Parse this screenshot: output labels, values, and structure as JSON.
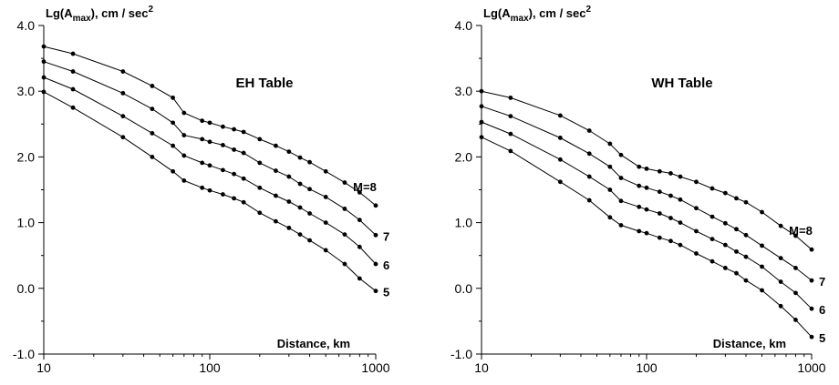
{
  "chart_data": [
    {
      "type": "line",
      "title": "EH Table",
      "ylabel": "Lg(A",
      "ylabel_sub": "max",
      "ylabel_unit": "), cm / sec",
      "ylabel_sup": "2",
      "xlabel": "Distance, km",
      "x_scale": "log",
      "xlim": [
        10,
        1000
      ],
      "ylim": [
        -1.0,
        4.0
      ],
      "x_ticks": [
        "10",
        "100",
        "1000"
      ],
      "y_ticks": [
        "-1.0",
        "0.0",
        "1.0",
        "2.0",
        "3.0",
        "4.0"
      ],
      "grid": false,
      "x": [
        10,
        15,
        30,
        45,
        60,
        70,
        90,
        100,
        120,
        140,
        160,
        200,
        250,
        300,
        350,
        400,
        500,
        650,
        800,
        1000
      ],
      "series": [
        {
          "name": "M=8",
          "values": [
            3.68,
            3.57,
            3.3,
            3.08,
            2.9,
            2.67,
            2.55,
            2.52,
            2.46,
            2.42,
            2.38,
            2.27,
            2.17,
            2.08,
            1.99,
            1.92,
            1.78,
            1.61,
            1.46,
            1.26
          ]
        },
        {
          "name": "7",
          "values": [
            3.45,
            3.3,
            2.97,
            2.73,
            2.52,
            2.33,
            2.27,
            2.23,
            2.18,
            2.11,
            2.06,
            1.91,
            1.79,
            1.7,
            1.59,
            1.51,
            1.39,
            1.21,
            1.04,
            0.81
          ]
        },
        {
          "name": "6",
          "values": [
            3.21,
            3.03,
            2.62,
            2.36,
            2.17,
            2.02,
            1.91,
            1.87,
            1.8,
            1.74,
            1.67,
            1.53,
            1.41,
            1.32,
            1.23,
            1.14,
            1.0,
            0.82,
            0.63,
            0.37
          ]
        },
        {
          "name": "5",
          "values": [
            2.99,
            2.75,
            2.3,
            2.0,
            1.78,
            1.64,
            1.53,
            1.49,
            1.43,
            1.37,
            1.31,
            1.15,
            1.02,
            0.92,
            0.82,
            0.73,
            0.58,
            0.37,
            0.15,
            -0.04
          ]
        }
      ]
    },
    {
      "type": "line",
      "title": "WH Table",
      "ylabel": "Lg(A",
      "ylabel_sub": "max",
      "ylabel_unit": "), cm / sec",
      "ylabel_sup": "2",
      "xlabel": "Distance, km",
      "x_scale": "log",
      "xlim": [
        10,
        1000
      ],
      "ylim": [
        -1.0,
        4.0
      ],
      "x_ticks": [
        "10",
        "100",
        "1000"
      ],
      "y_ticks": [
        "-1.0",
        "0.0",
        "1.0",
        "2.0",
        "3.0",
        "4.0"
      ],
      "grid": false,
      "x": [
        10,
        15,
        30,
        45,
        60,
        70,
        90,
        100,
        120,
        140,
        160,
        200,
        250,
        300,
        350,
        400,
        500,
        650,
        800,
        1000
      ],
      "series": [
        {
          "name": "M=8",
          "values": [
            3.0,
            2.9,
            2.63,
            2.4,
            2.2,
            2.03,
            1.85,
            1.82,
            1.78,
            1.75,
            1.7,
            1.62,
            1.52,
            1.45,
            1.37,
            1.31,
            1.16,
            0.95,
            0.8,
            0.59
          ]
        },
        {
          "name": "7",
          "values": [
            2.77,
            2.62,
            2.29,
            2.05,
            1.85,
            1.68,
            1.56,
            1.53,
            1.47,
            1.41,
            1.35,
            1.22,
            1.09,
            0.99,
            0.9,
            0.81,
            0.65,
            0.46,
            0.31,
            0.12
          ]
        },
        {
          "name": "6",
          "values": [
            2.53,
            2.35,
            1.96,
            1.7,
            1.5,
            1.33,
            1.24,
            1.2,
            1.14,
            1.07,
            1.0,
            0.87,
            0.75,
            0.66,
            0.56,
            0.48,
            0.33,
            0.1,
            -0.07,
            -0.31
          ]
        },
        {
          "name": "5",
          "values": [
            2.3,
            2.09,
            1.62,
            1.34,
            1.08,
            0.96,
            0.87,
            0.84,
            0.77,
            0.72,
            0.66,
            0.53,
            0.41,
            0.31,
            0.23,
            0.12,
            -0.03,
            -0.27,
            -0.48,
            -0.74
          ]
        }
      ]
    }
  ]
}
